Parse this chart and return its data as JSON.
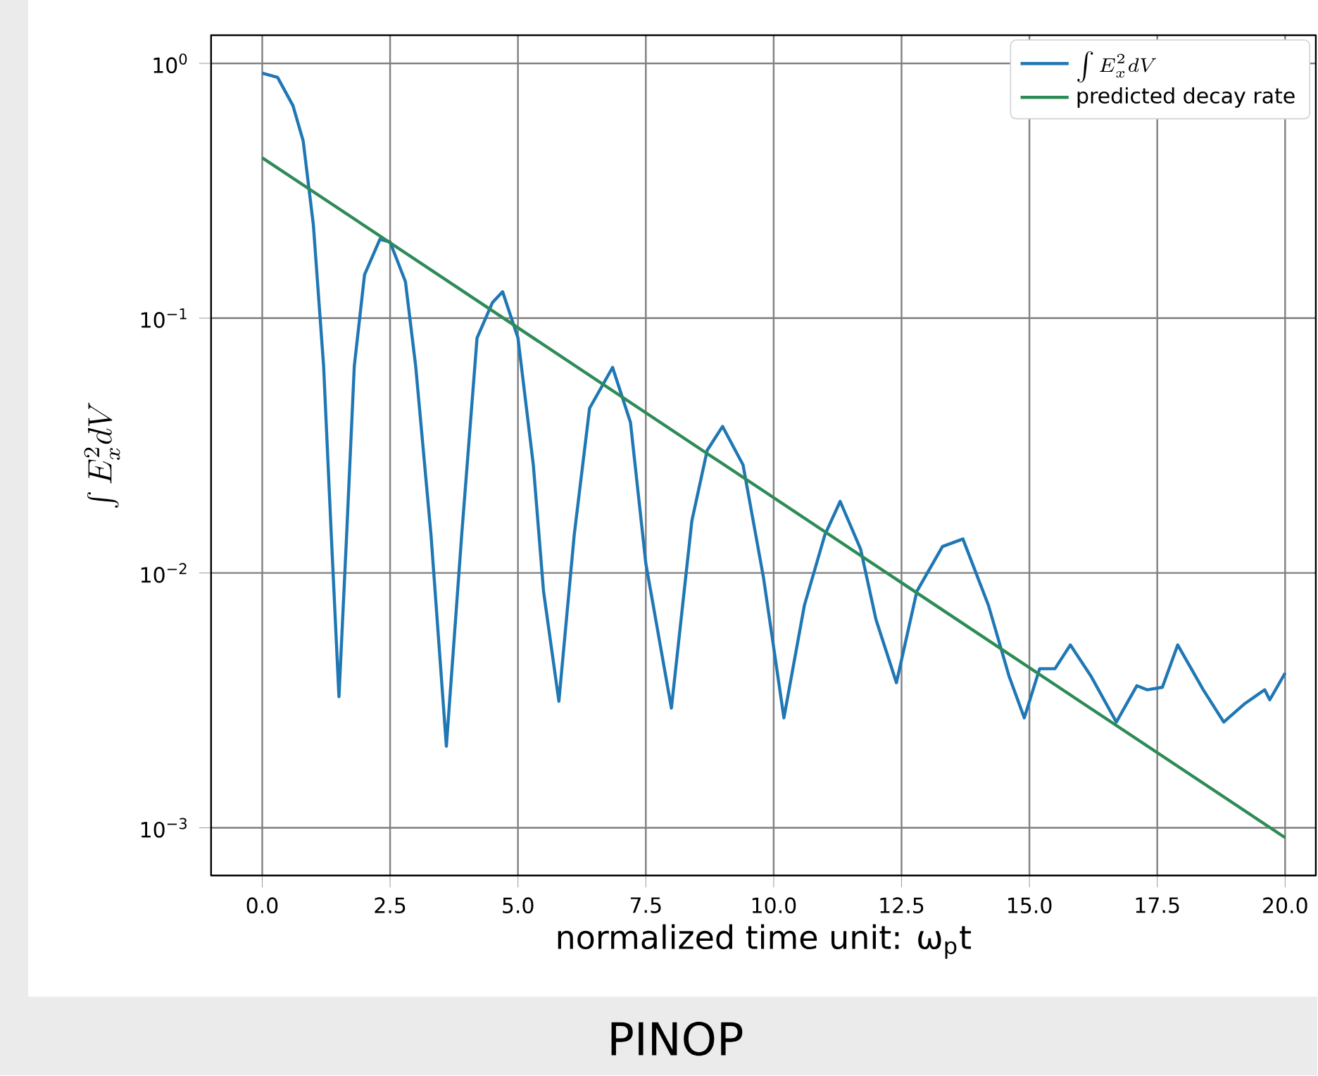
{
  "chart_data": {
    "type": "line",
    "xlabel": "normalized time unit: ω$_{p}$t",
    "ylabel": "\\int E_x^2 dV",
    "log": "y",
    "grid": true,
    "legend": "top right",
    "line_style": "solid",
    "xlim": [
      -1,
      20.6
    ],
    "ylim": [
      0.00065,
      1.29
    ],
    "xticks": [
      {
        "value": 0,
        "label": "0.0"
      },
      {
        "value": 2.5,
        "label": "2.5"
      },
      {
        "value": 5,
        "label": "5.0"
      },
      {
        "value": 7.5,
        "label": "7.5"
      },
      {
        "value": 10,
        "label": "10.0"
      },
      {
        "value": 12.5,
        "label": "12.5"
      },
      {
        "value": 15,
        "label": "15.0"
      },
      {
        "value": 17.5,
        "label": "17.5"
      },
      {
        "value": 20,
        "label": "20.0"
      }
    ],
    "yticks": [
      {
        "value": 0.001,
        "label": "10$^{−3}$"
      },
      {
        "value": 0.01,
        "label": "10$^{−2}$"
      },
      {
        "value": 0.1,
        "label": "10$^{−1}$"
      },
      {
        "value": 1,
        "label": "10$^{0}$"
      }
    ],
    "series": [
      {
        "name": "\\int E_x^2 dV",
        "color": "#1f77b4",
        "x": [
          0,
          0.3,
          0.6,
          0.8,
          1.0,
          1.2,
          1.35,
          1.5,
          1.65,
          1.8,
          2.0,
          2.3,
          2.5,
          2.8,
          3.0,
          3.3,
          3.6,
          3.9,
          4.2,
          4.5,
          4.7,
          5.0,
          5.3,
          5.5,
          5.8,
          6.1,
          6.4,
          6.85,
          7.2,
          7.5,
          8.0,
          8.4,
          8.7,
          9.0,
          9.4,
          9.8,
          10.2,
          10.6,
          11.0,
          11.3,
          11.7,
          12.0,
          12.4,
          12.8,
          13.3,
          13.7,
          14.2,
          14.6,
          14.9,
          15.2,
          15.5,
          15.8,
          16.2,
          16.7,
          17.1,
          17.3,
          17.6,
          17.9,
          18.4,
          18.8,
          19.2,
          19.6,
          19.7,
          20.0
        ],
        "values": [
          0.915,
          0.881,
          0.683,
          0.497,
          0.232,
          0.0649,
          0.0141,
          0.00327,
          0.0141,
          0.0649,
          0.148,
          0.204,
          0.199,
          0.139,
          0.0649,
          0.0141,
          0.00209,
          0.0141,
          0.0837,
          0.115,
          0.127,
          0.0837,
          0.0266,
          0.00848,
          0.00314,
          0.0141,
          0.0443,
          0.0641,
          0.039,
          0.0109,
          0.00295,
          0.016,
          0.0303,
          0.0376,
          0.0266,
          0.00962,
          0.0027,
          0.00746,
          0.0141,
          0.0191,
          0.0124,
          0.00657,
          0.00371,
          0.00848,
          0.0127,
          0.0136,
          0.00746,
          0.00395,
          0.0027,
          0.00421,
          0.00421,
          0.00522,
          0.00395,
          0.0026,
          0.00361,
          0.00348,
          0.00356,
          0.00522,
          0.00348,
          0.0026,
          0.00306,
          0.00348,
          0.00318,
          0.00405
        ]
      },
      {
        "name": "predicted decay rate",
        "color": "#2e8b57",
        "x": [
          0,
          20
        ],
        "values": [
          0.426,
          0.000915
        ]
      }
    ],
    "annotations": [
      "PINOP"
    ]
  }
}
